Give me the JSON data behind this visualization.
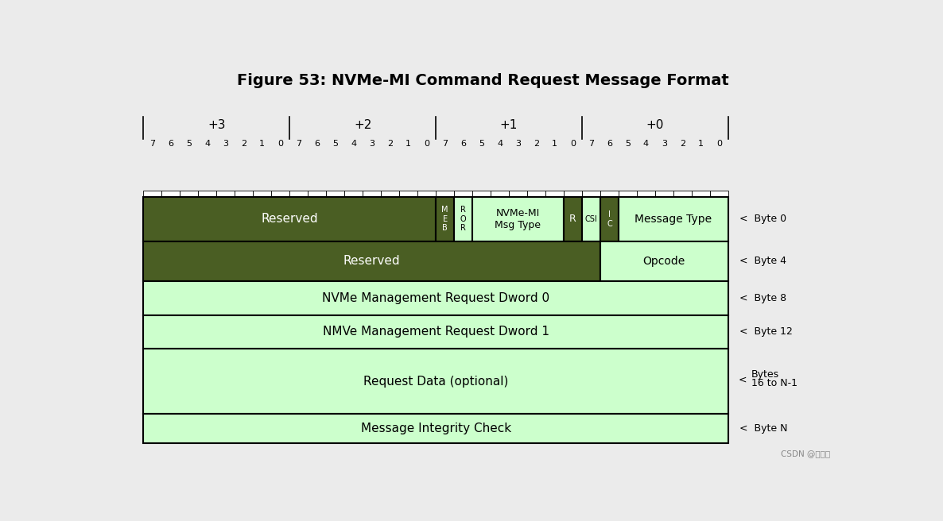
{
  "title": "Figure 53: NVMe-MI Command Request Message Format",
  "background_color": "#ebebeb",
  "fig_width": 11.86,
  "fig_height": 6.56,
  "dark_green": "#4a5e23",
  "light_green": "#ccffcc",
  "text_white": "#ffffff",
  "text_black": "#000000",
  "bit_labels": [
    7,
    6,
    5,
    4,
    3,
    2,
    1,
    0,
    7,
    6,
    5,
    4,
    3,
    2,
    1,
    0,
    7,
    6,
    5,
    4,
    3,
    2,
    1,
    0,
    7,
    6,
    5,
    4,
    3,
    2,
    1,
    0
  ],
  "group_labels": [
    "+3",
    "+2",
    "+1",
    "+0"
  ],
  "watermark": "CSDN @梨小星"
}
